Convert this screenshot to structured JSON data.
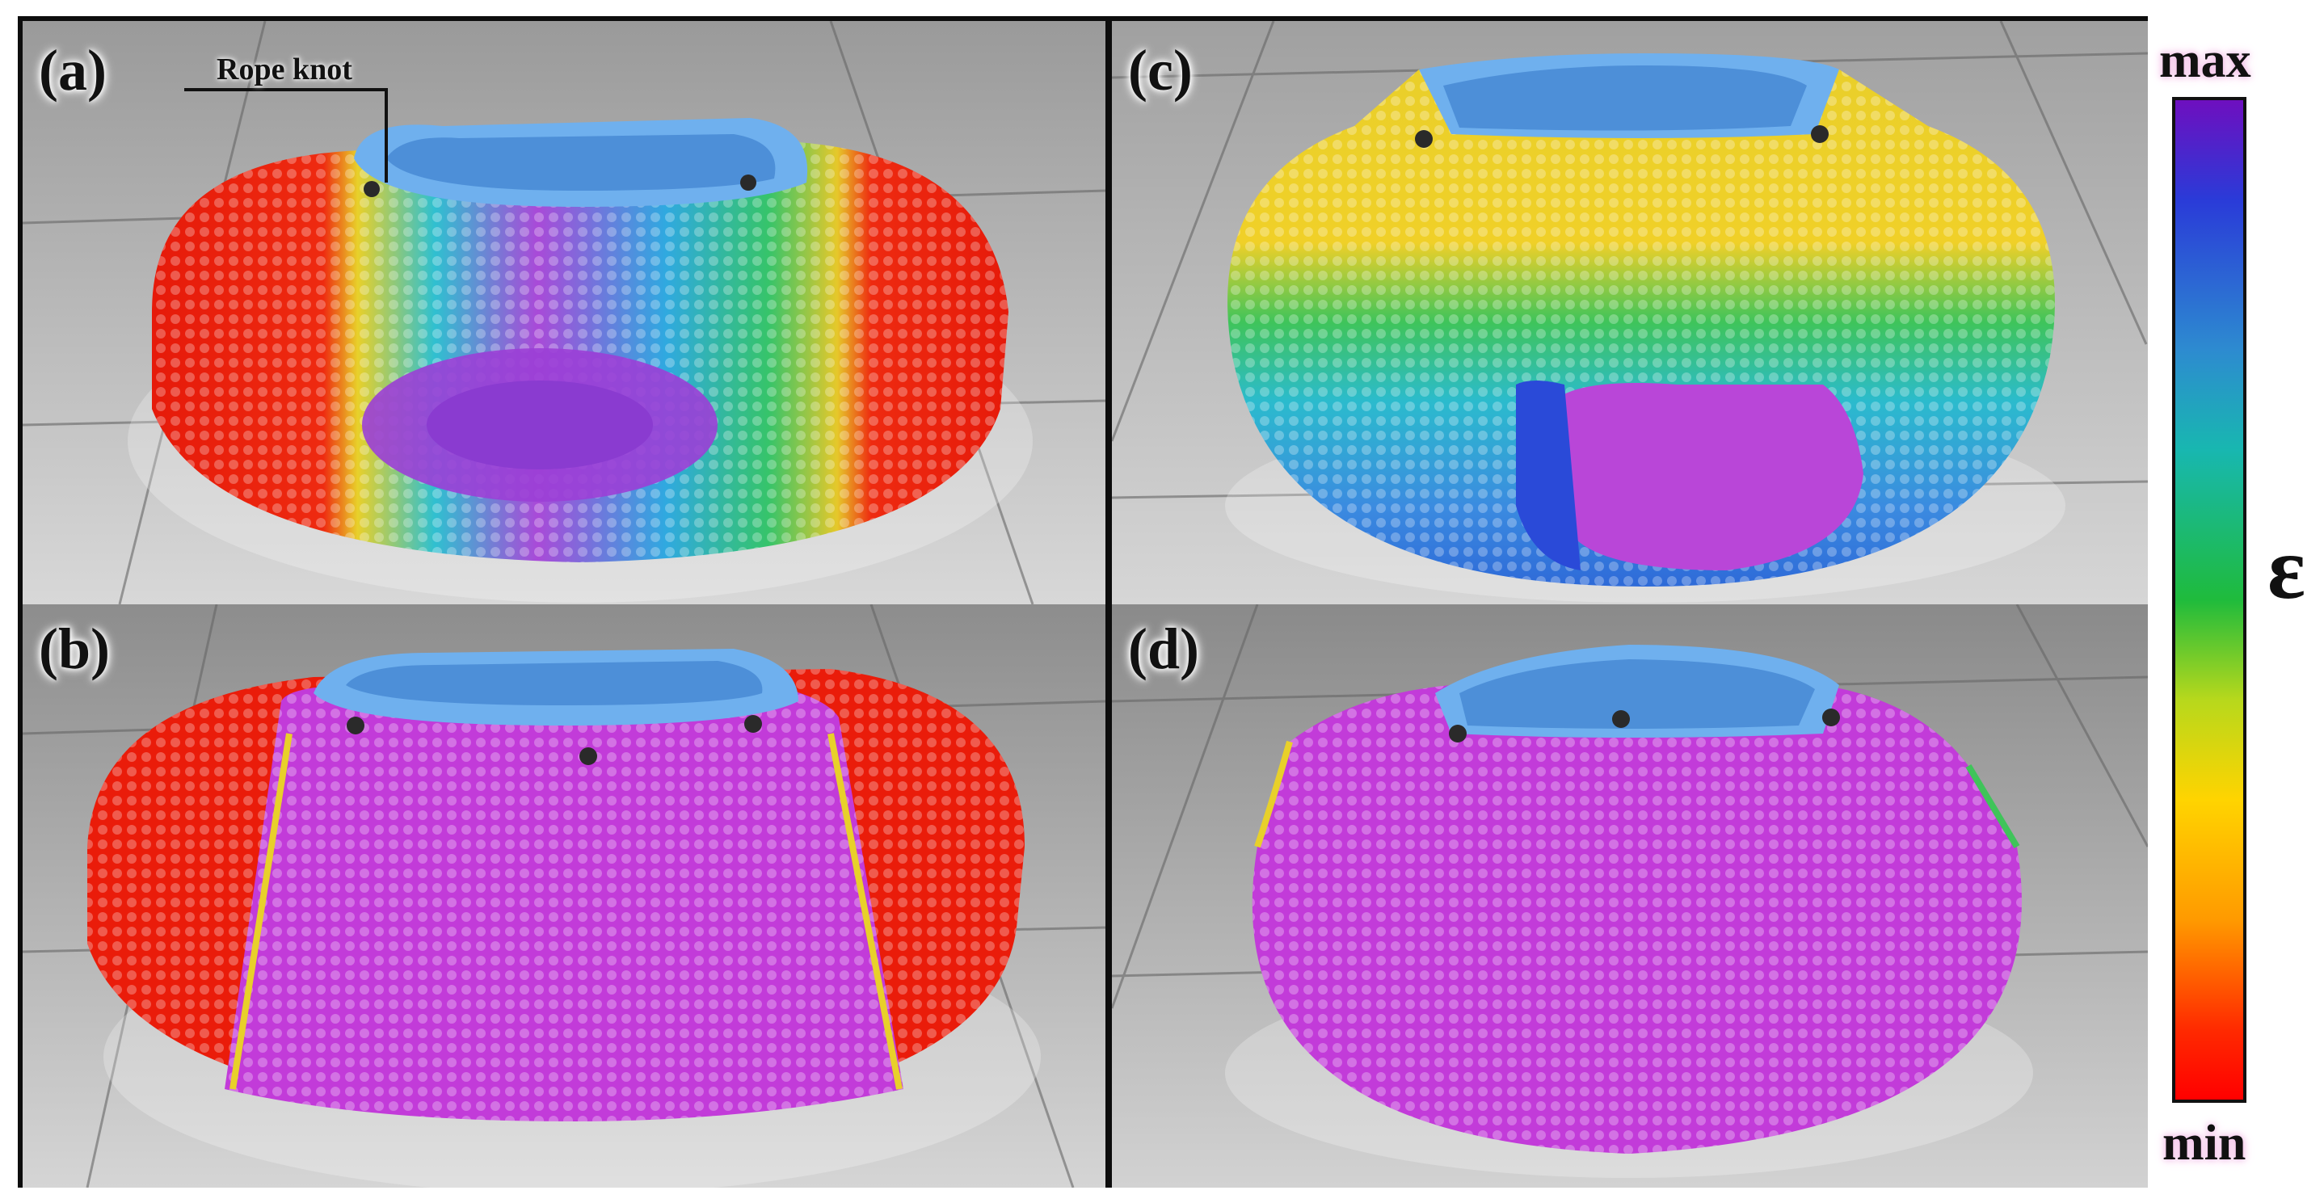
{
  "panels": {
    "a": {
      "label": "(a)",
      "annotation": "Rope knot"
    },
    "b": {
      "label": "(b)"
    },
    "c": {
      "label": "(c)"
    },
    "d": {
      "label": "(d)"
    }
  },
  "colorbar": {
    "max_label": "max",
    "min_label": "min",
    "variable": "ε",
    "colors": [
      "#6e0fbf",
      "#2a3bd8",
      "#2d8bd0",
      "#18b7b0",
      "#1fbb3c",
      "#b7d81c",
      "#ffd400",
      "#ff9a00",
      "#ff0000"
    ]
  },
  "palette": {
    "strain_min": "#ff1a00",
    "strain_max": "#c23bd9",
    "cloth": "#5ea8e8",
    "knot": "#222222"
  }
}
